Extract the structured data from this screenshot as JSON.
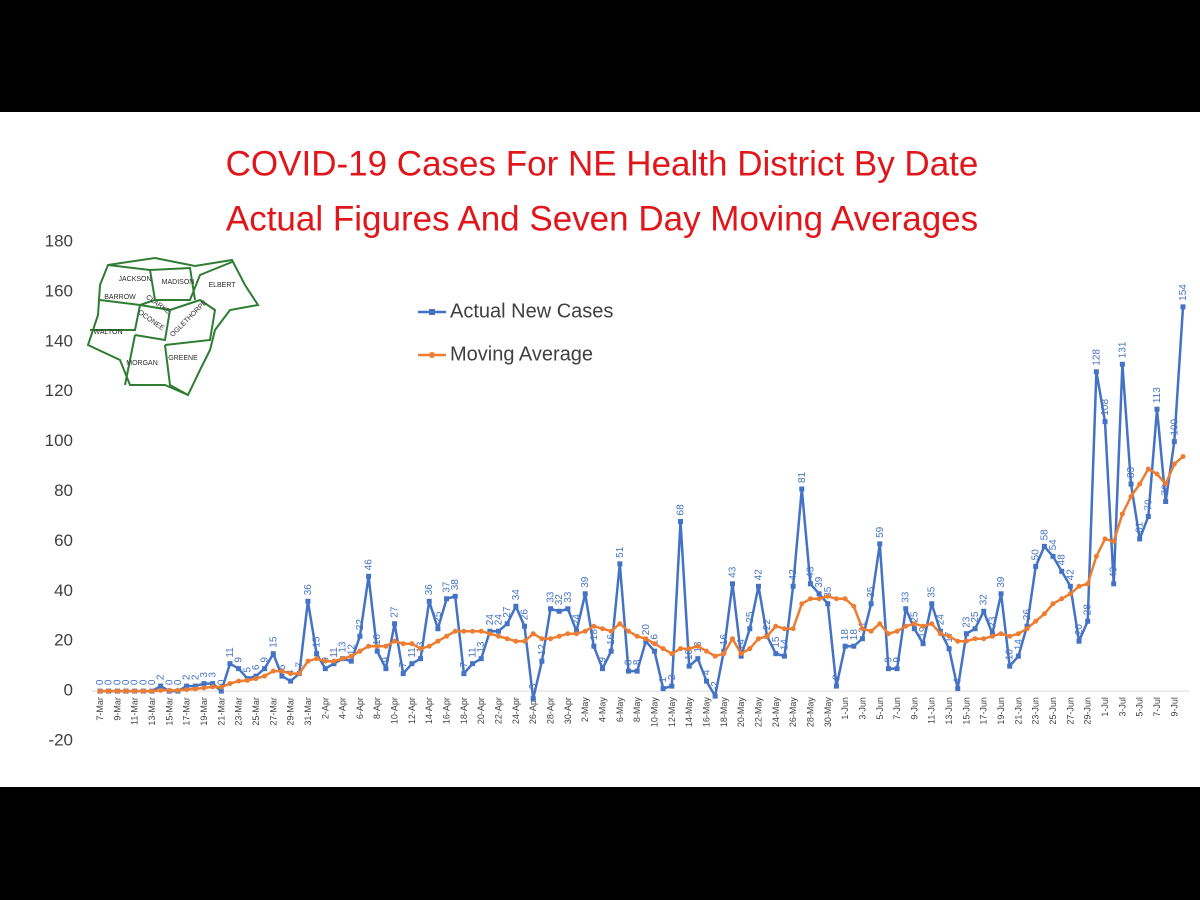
{
  "chart_data": {
    "type": "line",
    "title": "COVID-19 Cases For NE Health District By Date",
    "subtitle": "Actual Figures And Seven Day Moving Averages",
    "map_labels": [
      "JACKSON",
      "MADISON",
      "ELBERT",
      "BARROW",
      "CLARKE",
      "OCONEE",
      "OGLETHORPE",
      "WALTON",
      "MORGAN",
      "GREENE"
    ],
    "categories": [
      "7-Mar",
      null,
      "9-Mar",
      null,
      "11-Mar",
      null,
      "13-Mar",
      null,
      "15-Mar",
      null,
      "17-Mar",
      null,
      "19-Mar",
      null,
      "21-Mar",
      null,
      "23-Mar",
      null,
      "25-Mar",
      null,
      "27-Mar",
      null,
      "29-Mar",
      null,
      "31-Mar",
      null,
      "2-Apr",
      null,
      "4-Apr",
      null,
      "6-Apr",
      null,
      "8-Apr",
      null,
      "10-Apr",
      null,
      "12-Apr",
      null,
      "14-Apr",
      null,
      "16-Apr",
      null,
      "18-Apr",
      null,
      "20-Apr",
      null,
      "22-Apr",
      null,
      "24-Apr",
      null,
      "26-Apr",
      null,
      "28-Apr",
      null,
      "30-Apr",
      null,
      "2-May",
      null,
      "4-May",
      null,
      "6-May",
      null,
      "8-May",
      null,
      "10-May",
      null,
      "12-May",
      null,
      "14-May",
      null,
      "16-May",
      null,
      "18-May",
      null,
      "20-May",
      null,
      "22-May",
      null,
      "24-May",
      null,
      "26-May",
      null,
      "28-May",
      null,
      "30-May",
      null,
      "1-Jun",
      null,
      "3-Jun",
      null,
      "5-Jun",
      null,
      "7-Jun",
      null,
      "9-Jun",
      null,
      "11-Jun",
      null,
      "13-Jun",
      null,
      "15-Jun",
      null,
      "17-Jun",
      null,
      "19-Jun",
      null,
      "21-Jun",
      null,
      "23-Jun",
      null,
      "25-Jun",
      null,
      "27-Jun",
      null,
      "29-Jun",
      null,
      "1-Jul",
      null,
      "3-Jul",
      null,
      "5-Jul",
      null,
      "7-Jul",
      null,
      "9-Jul",
      null
    ],
    "series": [
      {
        "name": "Actual New Cases",
        "color": "#4472c4",
        "values": [
          0,
          0,
          0,
          0,
          0,
          0,
          0,
          2,
          0,
          0,
          2,
          2,
          3,
          3,
          0,
          11,
          9,
          5,
          6,
          9,
          15,
          6,
          4,
          7,
          36,
          15,
          9,
          11,
          13,
          12,
          22,
          46,
          16,
          9,
          27,
          7,
          11,
          13,
          36,
          25,
          37,
          38,
          7,
          11,
          13,
          24,
          24,
          27,
          34,
          26,
          -3,
          12,
          33,
          32,
          33,
          24,
          39,
          18,
          9,
          16,
          51,
          8,
          8,
          20,
          16,
          1,
          2,
          68,
          10,
          13,
          4,
          -2,
          16,
          43,
          14,
          25,
          42,
          22,
          15,
          14,
          42,
          81,
          43,
          39,
          35,
          2,
          18,
          18,
          21,
          35,
          59,
          9,
          9,
          33,
          25,
          19,
          35,
          24,
          17,
          1,
          23,
          25,
          32,
          23,
          39,
          10,
          14,
          26,
          50,
          58,
          54,
          48,
          42,
          20,
          28,
          128,
          108,
          43,
          131,
          83,
          61,
          70,
          113,
          76,
          100,
          154
        ]
      },
      {
        "name": "Moving Average",
        "color": "#ed7d31",
        "values": [
          0,
          0,
          0,
          0,
          0,
          0,
          0,
          0.3,
          0.3,
          0.3,
          0.6,
          0.9,
          1.3,
          1.7,
          1.6,
          3,
          4,
          4.3,
          5,
          6,
          8,
          8,
          7,
          7,
          12,
          13,
          12,
          12,
          13,
          14,
          16,
          18,
          18,
          18,
          20,
          19,
          19,
          17,
          18,
          20,
          22,
          24,
          24,
          24,
          24,
          23,
          22,
          21,
          20,
          20,
          23,
          21,
          21,
          22,
          23,
          23,
          24,
          26,
          25,
          24,
          27,
          24,
          22,
          21,
          19,
          17,
          15,
          17,
          17,
          18,
          16,
          14,
          15,
          21,
          15,
          17,
          21,
          22,
          26,
          25,
          25,
          35,
          37,
          37,
          38,
          37,
          37,
          34,
          25,
          24,
          27,
          23,
          24,
          26,
          27,
          26,
          27,
          23,
          22,
          20,
          20,
          21,
          21,
          22,
          23,
          22,
          23,
          25,
          28,
          31,
          35,
          37,
          39,
          42,
          43,
          54,
          61,
          60,
          71,
          78,
          83,
          89,
          87,
          83,
          91,
          94
        ]
      }
    ],
    "ylim": [
      -20,
      180
    ],
    "yticks": [
      -20,
      0,
      20,
      40,
      60,
      80,
      100,
      120,
      140,
      160,
      180
    ],
    "grid": false
  }
}
